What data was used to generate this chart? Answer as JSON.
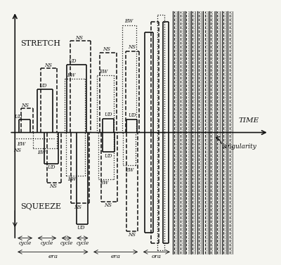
{
  "bg_color": "#f5f5f0",
  "text_color": "#111111",
  "stretch_label": "STRETCH",
  "squeeze_label": "SQUEEZE",
  "time_label": "TIME",
  "singularity_label": "singularity",
  "figsize": [
    4.0,
    3.77
  ],
  "dpi": 100
}
